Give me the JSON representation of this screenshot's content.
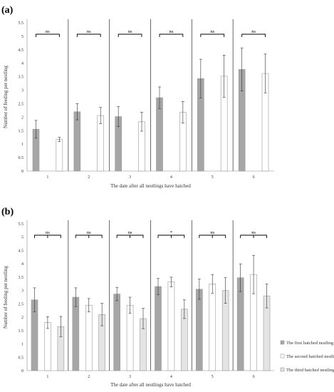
{
  "chart_data": [
    {
      "panel": "(a)",
      "type": "bar",
      "categories": [
        "1",
        "2",
        "3",
        "4",
        "5",
        "6"
      ],
      "ylabel": "Number of feeding per nestling",
      "xlabel": "The date after all nestlings have hatched",
      "ylim": [
        0,
        5.5
      ],
      "yticks": [
        "0",
        "0.5",
        "1",
        "1.5",
        "2",
        "2.5",
        "3",
        "3.5",
        "4",
        "4.5",
        "5",
        "5.5"
      ],
      "significance": [
        "ns",
        "ns",
        "ns",
        "ns",
        "ns",
        "ns"
      ],
      "series": [
        {
          "name": "The first hatched nestling",
          "color": "#a6a6a6",
          "values": [
            1.55,
            2.2,
            2.02,
            2.72,
            3.43,
            3.77
          ],
          "errors": [
            0.33,
            0.3,
            0.37,
            0.4,
            0.72,
            0.8
          ]
        },
        {
          "name": "The second hatched nestling",
          "color": "#ffffff",
          "values": [
            1.17,
            2.06,
            1.83,
            2.18,
            3.52,
            3.62
          ],
          "errors": [
            0.08,
            0.3,
            0.35,
            0.4,
            0.78,
            0.72
          ]
        }
      ]
    },
    {
      "panel": "(b)",
      "type": "bar",
      "categories": [
        "1",
        "2",
        "3",
        "4",
        "5",
        "6"
      ],
      "ylabel": "Number of feeding per nestling",
      "xlabel": "The date after all nestlings have hatched",
      "ylim": [
        0,
        5.5
      ],
      "yticks": [
        "0",
        "0.5",
        "1",
        "1.5",
        "2",
        "2.5",
        "3",
        "3.5",
        "4",
        "4.5",
        "5",
        "5.5"
      ],
      "significance": [
        "ns",
        "ns",
        "ns",
        "*",
        "ns",
        "ns"
      ],
      "series": [
        {
          "name": "The first hatched nestling",
          "color": "#a6a6a6",
          "values": [
            2.65,
            2.75,
            2.87,
            3.15,
            3.05,
            3.48
          ],
          "errors": [
            0.45,
            0.35,
            0.25,
            0.3,
            0.38,
            0.52
          ]
        },
        {
          "name": "The second hatched nestling",
          "color": "#ffffff",
          "values": [
            1.8,
            2.45,
            2.45,
            3.32,
            3.25,
            3.6
          ],
          "errors": [
            0.22,
            0.25,
            0.3,
            0.18,
            0.35,
            0.72
          ]
        },
        {
          "name": "The third hatched nestling",
          "color": "#e4e4e4",
          "values": [
            1.65,
            2.1,
            1.95,
            2.3,
            3.0,
            2.8
          ],
          "errors": [
            0.38,
            0.42,
            0.38,
            0.35,
            0.48,
            0.45
          ]
        }
      ]
    }
  ],
  "legend": [
    {
      "label": "The first hatched nestling",
      "color": "#a6a6a6"
    },
    {
      "label": "The second hatched nestling",
      "color": "#ffffff"
    },
    {
      "label": "The third hatched nestling",
      "color": "#e4e4e4"
    }
  ]
}
